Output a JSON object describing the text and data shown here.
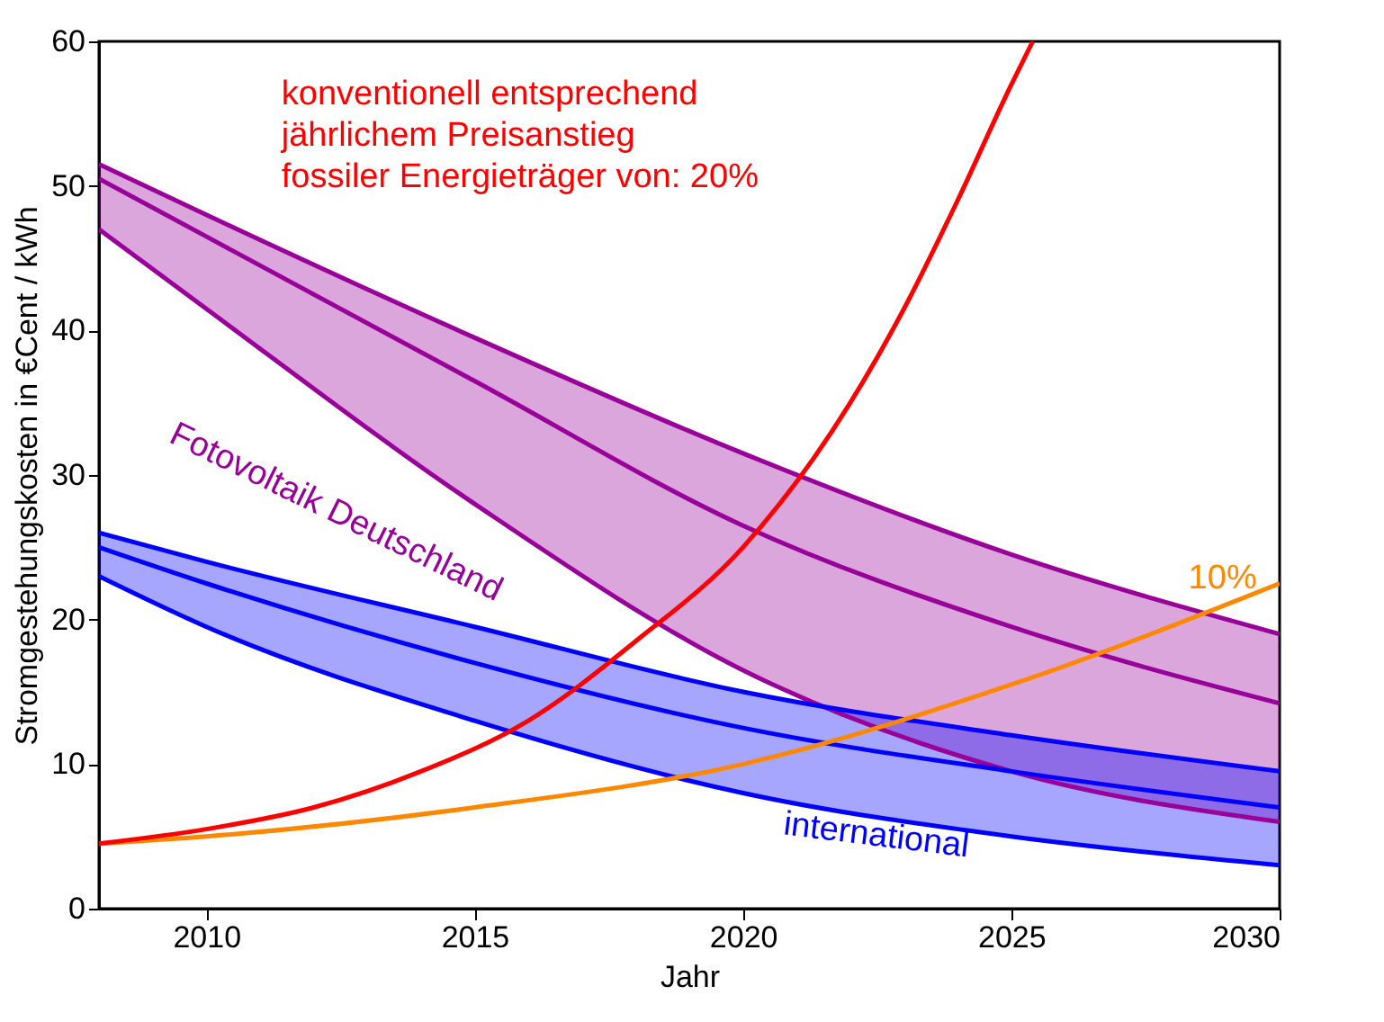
{
  "chart_data": {
    "type": "line",
    "xlabel": "Jahr",
    "ylabel": "Stromgestehungskosten in €Cent / kWh",
    "xlim": [
      2008,
      2030
    ],
    "ylim": [
      0,
      60
    ],
    "xticks": [
      2010,
      2015,
      2020,
      2025,
      2030
    ],
    "yticks": [
      0,
      10,
      20,
      30,
      40,
      50,
      60
    ],
    "grid": false,
    "marker": "none",
    "line_style": "solid",
    "series": [
      {
        "name": "Fotovoltaik  Deutschland",
        "color": "#990099",
        "x": [
          2008,
          2010,
          2015,
          2020,
          2025,
          2030
        ],
        "values": [
          50.5,
          46.5,
          36.5,
          26.5,
          19.5,
          14.2
        ],
        "lower": [
          47,
          41.5,
          28,
          16.5,
          9.5,
          6
        ],
        "upper": [
          51.5,
          48,
          39.5,
          31.5,
          24.5,
          19
        ]
      },
      {
        "color": "#990099",
        "x": [
          2008,
          2010,
          2015,
          2020,
          2025,
          2030
        ],
        "values": [
          51.5,
          48,
          39.5,
          31.5,
          24.5,
          19
        ]
      },
      {
        "color": "#990099",
        "x": [
          2008,
          2010,
          2015,
          2020,
          2025,
          2030
        ],
        "values": [
          47,
          41.5,
          28,
          16.5,
          9.5,
          6
        ]
      },
      {
        "color": "#0000ff",
        "x": [
          2008,
          2010,
          2015,
          2020,
          2025,
          2030
        ],
        "values": [
          26,
          24,
          19.5,
          15,
          12,
          9.5
        ]
      },
      {
        "color": "#0000ff",
        "x": [
          2008,
          2010,
          2015,
          2020,
          2025,
          2030
        ],
        "values": [
          23,
          19.5,
          13,
          8,
          5,
          3
        ]
      },
      {
        "name": "international",
        "color": "#0000ff",
        "x": [
          2008,
          2010,
          2015,
          2020,
          2025,
          2030
        ],
        "values": [
          25,
          22.5,
          17,
          12.5,
          9.5,
          7
        ],
        "lower": [
          23,
          19.5,
          13,
          8,
          5,
          3
        ],
        "upper": [
          26,
          24,
          19.5,
          15,
          12,
          9.5
        ]
      },
      {
        "name": "10%",
        "color": "#ff8800",
        "x": [
          2008,
          2010,
          2015,
          2020,
          2025,
          2030
        ],
        "values": [
          4.5,
          5,
          7,
          10,
          15.5,
          22.5
        ]
      },
      {
        "name": "konventionell entsprechend\njährlichem Preisanstieg\nfossiler Energieträger von: 20%",
        "color": "#ff0000",
        "x": [
          2008,
          2010,
          2012,
          2014,
          2016,
          2018,
          2020,
          2022,
          2023,
          2024,
          2025,
          2025.4
        ],
        "values": [
          4.5,
          5.5,
          7,
          9.5,
          13,
          18.5,
          25,
          35,
          41.5,
          49,
          57,
          60
        ]
      }
    ]
  }
}
